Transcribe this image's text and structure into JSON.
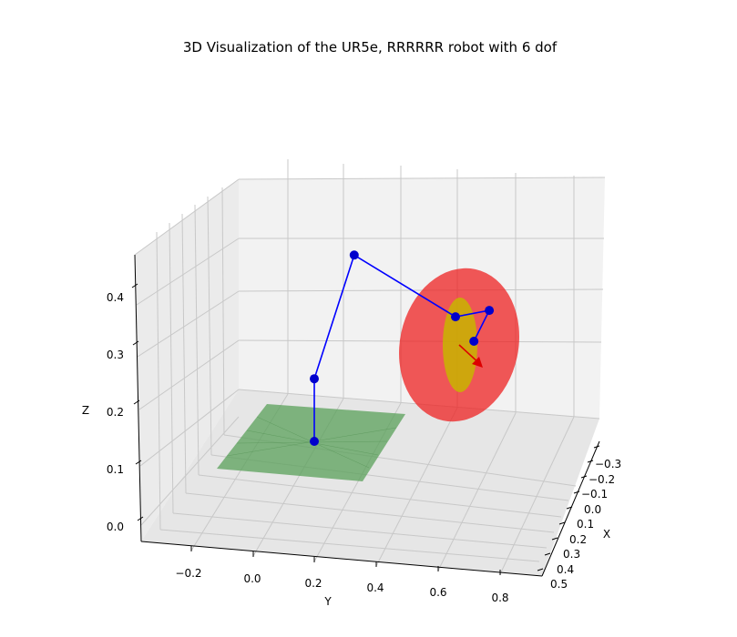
{
  "chart_data": {
    "type": "3d",
    "title": "3D Visualization of the UR5e, RRRRRR robot with 6 dof",
    "xlabel": "X",
    "ylabel": "Y",
    "zlabel": "Z",
    "x_ticks": [
      "−0.3",
      "−0.2",
      "−0.1",
      "0.0",
      "0.1",
      "0.2",
      "0.3",
      "0.4",
      "0.5"
    ],
    "y_ticks": [
      "−0.2",
      "0.0",
      "0.2",
      "0.4",
      "0.6",
      "0.8"
    ],
    "z_ticks": [
      "0.0",
      "0.1",
      "0.2",
      "0.3",
      "0.4"
    ],
    "grid": true,
    "colors": {
      "link": "#0000ff",
      "joint": "#0000cc",
      "ground_plane": "#5aa05a",
      "outer_ellipsoid": "#ee2222",
      "inner_ellipsoid": "#c8b400",
      "tool_arrow": "#dd0000",
      "pane": "#f2f2f2",
      "grid": "#c8c8c8"
    },
    "robot_joints": [
      {
        "name": "base",
        "x": 0.0,
        "y": 0.0,
        "z": 0.0
      },
      {
        "name": "shoulder",
        "x": 0.0,
        "y": 0.0,
        "z": 0.16
      },
      {
        "name": "elbow",
        "x": 0.05,
        "y": 0.12,
        "z": 0.47
      },
      {
        "name": "wrist-1",
        "x": 0.05,
        "y": 0.45,
        "z": 0.32
      },
      {
        "name": "wrist-2",
        "x": 0.1,
        "y": 0.55,
        "z": 0.33
      },
      {
        "name": "wrist-3",
        "x": 0.1,
        "y": 0.5,
        "z": 0.25
      }
    ]
  }
}
